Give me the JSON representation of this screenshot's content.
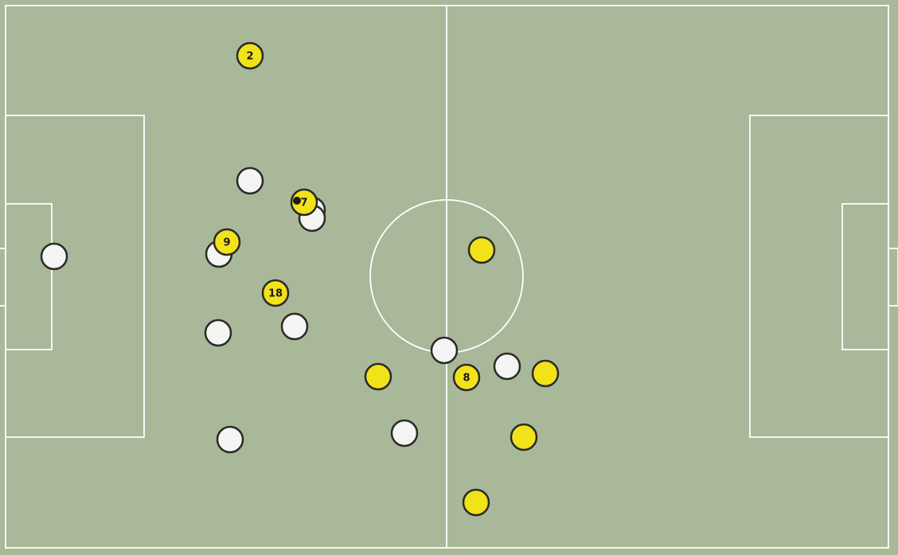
{
  "colors": {
    "pitch": "#a8b898",
    "lines": "#ffffff",
    "team_yellow": "#f2e21a",
    "team_white": "#f4f4f2",
    "outline": "#2a2a2a",
    "ball": "#1a1a1a"
  },
  "players": [
    {
      "team": "yellow",
      "number": "2"
    },
    {
      "team": "white",
      "number": ""
    },
    {
      "team": "white",
      "number": ""
    },
    {
      "team": "yellow",
      "number": "7"
    },
    {
      "team": "white",
      "number": ""
    },
    {
      "team": "yellow",
      "number": "9"
    },
    {
      "team": "white",
      "number": ""
    },
    {
      "team": "yellow",
      "number": "18"
    },
    {
      "team": "white",
      "number": ""
    },
    {
      "team": "white",
      "number": ""
    },
    {
      "team": "yellow",
      "number": ""
    },
    {
      "team": "white",
      "number": ""
    },
    {
      "team": "yellow",
      "number": ""
    },
    {
      "team": "yellow",
      "number": "8"
    },
    {
      "team": "white",
      "number": ""
    },
    {
      "team": "yellow",
      "number": ""
    },
    {
      "team": "white",
      "number": ""
    },
    {
      "team": "white",
      "number": ""
    },
    {
      "team": "yellow",
      "number": ""
    },
    {
      "team": "yellow",
      "number": ""
    }
  ]
}
